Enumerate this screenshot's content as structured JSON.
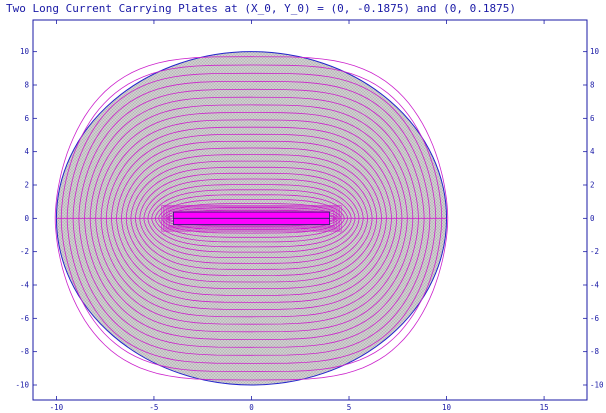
{
  "chart_data": {
    "type": "contour",
    "title": "Two Long Current Carrying Plates at (X_0, Y_0) = (0, -0.1875) and (0, 0.1875)",
    "xlabel": "",
    "ylabel": "",
    "xlim": [
      -11.2,
      17.2
    ],
    "ylim": [
      -10.9,
      11.9
    ],
    "x_ticks": [
      -10,
      -5,
      0,
      5,
      10,
      15
    ],
    "y_ticks": [
      -10,
      -8,
      -6,
      -4,
      -2,
      0,
      2,
      4,
      6,
      8,
      10
    ],
    "grid": false,
    "domain_boundary": {
      "shape": "circle",
      "center": [
        0,
        0
      ],
      "radius": 10
    },
    "plates": [
      {
        "x0": -4,
        "x1": 4,
        "y0": 0.0,
        "y1": 0.375,
        "label_center": [
          0,
          0.1875
        ]
      },
      {
        "x0": -4,
        "x1": 4,
        "y0": -0.375,
        "y1": 0.0,
        "label_center": [
          0,
          -0.1875
        ]
      }
    ],
    "field_lines": {
      "description": "closed flux loops encircling the plate pair",
      "loop_count": 26,
      "min_loop_halfheight": 0.35,
      "max_loop_halfheight": 9.7
    },
    "colors": {
      "axis": "#1a1aa6",
      "boundary": "#2222cc",
      "mesh_fill": "#c9c9c9",
      "field_lines": "#cc22cc",
      "plate_fill": "#ff00ff"
    }
  }
}
